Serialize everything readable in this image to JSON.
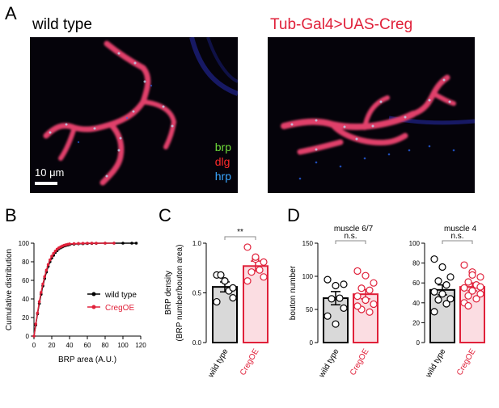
{
  "panels": {
    "a": "A",
    "b": "B",
    "c": "C",
    "d": "D"
  },
  "microscopy": {
    "left_title": "wild type",
    "right_title": "Tub-Gal4>UAS-Creg",
    "right_title_color": "#e0213a",
    "legend": [
      {
        "label": "brp",
        "color": "#6fdc3a"
      },
      {
        "label": "dlg",
        "color": "#ff2a2a"
      },
      {
        "label": "hrp",
        "color": "#3aa6ff"
      }
    ],
    "scale_bar": "10 μm"
  },
  "chart_data": [
    {
      "id": "B",
      "type": "line",
      "xlabel": "BRP area (A.U.)",
      "ylabel": "Cumulative distribution",
      "xlim": [
        0,
        120
      ],
      "ylim": [
        0,
        100
      ],
      "xticks": [
        "0",
        "20",
        "40",
        "60",
        "80",
        "100",
        "120"
      ],
      "yticks": [
        "0",
        "20",
        "40",
        "60",
        "80",
        "100"
      ],
      "legend_position": "right",
      "series": [
        {
          "name": "wild type",
          "color": "#000000",
          "x": [
            0,
            2,
            4,
            6,
            8,
            10,
            12,
            14,
            16,
            18,
            20,
            22,
            24,
            26,
            28,
            30,
            32,
            34,
            36,
            38,
            40,
            45,
            50,
            55,
            60,
            65,
            70,
            80,
            90,
            100,
            110,
            115
          ],
          "y": [
            0,
            12,
            24,
            35,
            45,
            54,
            62,
            69,
            75,
            80,
            84,
            87,
            90,
            92,
            94,
            95,
            96,
            97,
            97.5,
            98,
            98.5,
            99,
            99.3,
            99.5,
            99.7,
            99.8,
            99.9,
            100,
            100,
            100,
            100,
            100
          ]
        },
        {
          "name": "CregOE",
          "color": "#e0213a",
          "x": [
            0,
            2,
            4,
            6,
            8,
            10,
            12,
            14,
            16,
            18,
            20,
            22,
            24,
            26,
            28,
            30,
            32,
            34,
            36,
            38,
            40,
            45,
            50,
            55,
            60,
            65,
            70,
            80,
            90
          ],
          "y": [
            0,
            13,
            25,
            37,
            47,
            56,
            64,
            71,
            77,
            82,
            86,
            89,
            91.5,
            93.5,
            95,
            96,
            97,
            97.8,
            98.3,
            98.8,
            99.2,
            99.5,
            99.7,
            99.9,
            100,
            100,
            100,
            100,
            100
          ]
        }
      ]
    },
    {
      "id": "C",
      "type": "bar",
      "ylabel": "BRP density",
      "ylabel2": "(BRP number/bouton area)",
      "categories": [
        "wild type",
        "CregOE"
      ],
      "values": [
        0.56,
        0.77
      ],
      "errors": [
        0.05,
        0.05
      ],
      "ylim": [
        0,
        1.0
      ],
      "yticks": [
        "0.0",
        "0.5",
        "1.0"
      ],
      "significance": "**",
      "points": [
        [
          0.68,
          0.62,
          0.45,
          0.68,
          0.52,
          0.41,
          0.62,
          0.55
        ],
        [
          0.96,
          0.84,
          0.81,
          0.71,
          0.73,
          0.62,
          0.86,
          0.66
        ]
      ],
      "colors": [
        "#000000",
        "#e0213a"
      ]
    },
    {
      "id": "D1",
      "type": "bar",
      "title": "muscle 6/7",
      "ylabel": "bouton number",
      "categories": [
        "wild type",
        "CregOE"
      ],
      "values": [
        67,
        73
      ],
      "errors": [
        10,
        7
      ],
      "ylim": [
        0,
        150
      ],
      "yticks": [
        "0",
        "50",
        "100",
        "150"
      ],
      "significance": "n.s.",
      "points": [
        [
          95,
          86,
          88,
          66,
          67,
          40,
          28,
          52
        ],
        [
          108,
          101,
          90,
          82,
          79,
          70,
          64,
          58,
          50,
          46,
          55
        ]
      ],
      "colors": [
        "#000000",
        "#e0213a"
      ]
    },
    {
      "id": "D2",
      "type": "bar",
      "title": "muscle 4",
      "categories": [
        "wild type",
        "CregOE"
      ],
      "values": [
        53,
        56
      ],
      "errors": [
        5,
        4
      ],
      "ylim": [
        0,
        100
      ],
      "yticks": [
        "0",
        "20",
        "40",
        "60",
        "80",
        "100"
      ],
      "significance": "n.s.",
      "points": [
        [
          84,
          76,
          66,
          62,
          58,
          51,
          49,
          44,
          43,
          39,
          31
        ],
        [
          78,
          71,
          66,
          61,
          58,
          55,
          52,
          49,
          47,
          44,
          40,
          68,
          56,
          37
        ]
      ],
      "colors": [
        "#000000",
        "#e0213a"
      ]
    }
  ]
}
